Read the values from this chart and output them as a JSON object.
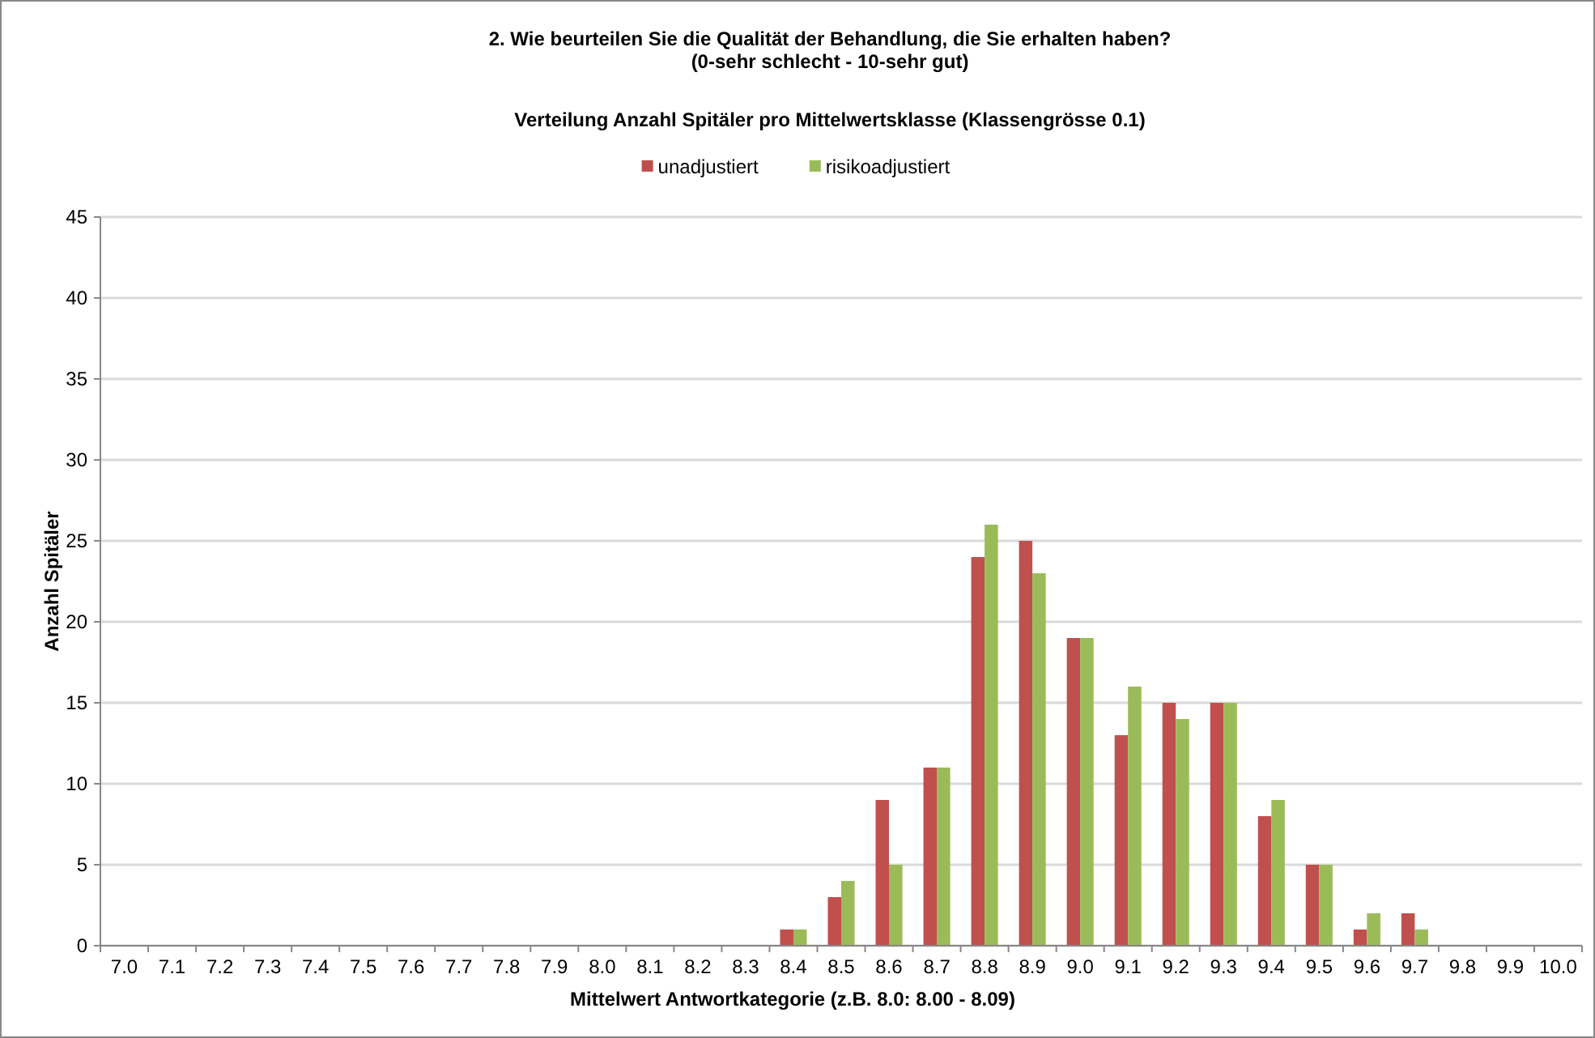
{
  "chart_data": {
    "type": "bar",
    "title": "2. Wie beurteilen Sie die Qualität der Behandlung, die Sie erhalten haben?\n(0-sehr schlecht - 10-sehr gut)",
    "subtitle": "Verteilung Anzahl Spitäler pro Mittelwertsklasse (Klassengrösse 0.1)",
    "xlabel": "Mittelwert Antwortkategorie (z.B. 8.0: 8.00 - 8.09)",
    "ylabel": "Anzahl Spitäler",
    "categories": [
      "7.0",
      "7.1",
      "7.2",
      "7.3",
      "7.4",
      "7.5",
      "7.6",
      "7.7",
      "7.8",
      "7.9",
      "8.0",
      "8.1",
      "8.2",
      "8.3",
      "8.4",
      "8.5",
      "8.6",
      "8.7",
      "8.8",
      "8.9",
      "9.0",
      "9.1",
      "9.2",
      "9.3",
      "9.4",
      "9.5",
      "9.6",
      "9.7",
      "9.8",
      "9.9",
      "10.0"
    ],
    "series": [
      {
        "name": "unadjustiert",
        "color": "#c0504d",
        "values": [
          0,
          0,
          0,
          0,
          0,
          0,
          0,
          0,
          0,
          0,
          0,
          0,
          0,
          0,
          1,
          3,
          9,
          11,
          24,
          25,
          19,
          13,
          15,
          15,
          8,
          5,
          1,
          2,
          0,
          0,
          0
        ]
      },
      {
        "name": "risikoadjustiert",
        "color": "#9bbb59",
        "values": [
          0,
          0,
          0,
          0,
          0,
          0,
          0,
          0,
          0,
          0,
          0,
          0,
          0,
          0,
          1,
          4,
          5,
          11,
          26,
          23,
          19,
          16,
          14,
          15,
          9,
          5,
          2,
          1,
          0,
          0,
          0
        ]
      }
    ],
    "ylim": [
      0,
      45
    ],
    "yticks": [
      0,
      5,
      10,
      15,
      20,
      25,
      30,
      35,
      40,
      45
    ],
    "grid": "y",
    "legend": "top"
  }
}
